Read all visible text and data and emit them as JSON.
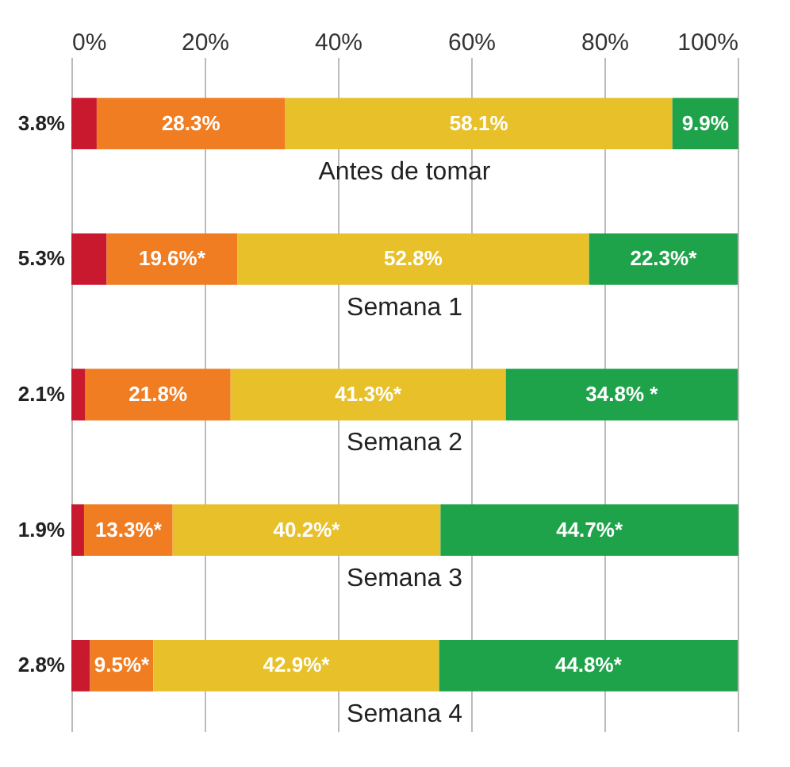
{
  "chart_data": {
    "type": "bar",
    "orientation": "horizontal",
    "stacked": true,
    "categories": [
      "Antes de tomar",
      "Semana 1",
      "Semana 2",
      "Semana 3",
      "Semana 4"
    ],
    "series": [
      {
        "color": "#c8192e",
        "values": [
          3.8,
          5.3,
          2.1,
          1.9,
          2.8
        ],
        "value_labels": [
          "3.8%",
          "5.3%",
          "2.1%",
          "1.9%",
          "2.8%"
        ]
      },
      {
        "color": "#f07d22",
        "values": [
          28.3,
          19.6,
          21.8,
          13.3,
          9.5
        ],
        "value_labels": [
          "28.3%",
          "19.6%*",
          "21.8%",
          "13.3%*",
          "9.5%*"
        ]
      },
      {
        "color": "#e8c12a",
        "values": [
          58.1,
          52.8,
          41.3,
          40.2,
          42.9
        ],
        "value_labels": [
          "58.1%",
          "52.8%",
          "41.3%*",
          "40.2%*",
          "42.9%*"
        ]
      },
      {
        "color": "#1fa34a",
        "values": [
          9.9,
          22.3,
          34.8,
          44.7,
          44.8
        ],
        "value_labels": [
          "9.9%",
          "22.3%*",
          "34.8% *",
          "44.7%*",
          "44.8%*"
        ]
      }
    ],
    "xlim": [
      0,
      100
    ],
    "xticks": [
      {
        "value": 0,
        "label": "0%"
      },
      {
        "value": 20,
        "label": "20%"
      },
      {
        "value": 40,
        "label": "40%"
      },
      {
        "value": 60,
        "label": "60%"
      },
      {
        "value": 80,
        "label": "80%"
      },
      {
        "value": 100,
        "label": "100%"
      }
    ],
    "grid": "x"
  }
}
